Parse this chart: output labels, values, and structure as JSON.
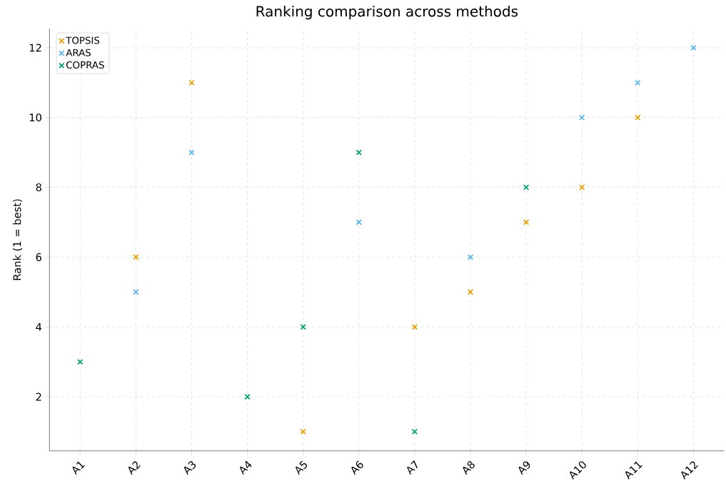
{
  "chart_data": {
    "type": "scatter",
    "title": "Ranking comparison across methods",
    "ylabel": "Rank (1 = best)",
    "categories": [
      "A1",
      "A2",
      "A3",
      "A4",
      "A5",
      "A6",
      "A7",
      "A8",
      "A9",
      "A10",
      "A11",
      "A12"
    ],
    "series": [
      {
        "name": "TOPSIS",
        "color": "#e69f00",
        "values": [
          null,
          6,
          11,
          null,
          1,
          null,
          4,
          5,
          7,
          8,
          10,
          null
        ]
      },
      {
        "name": "ARAS",
        "color": "#56b4e9",
        "values": [
          null,
          5,
          9,
          null,
          null,
          7,
          null,
          6,
          null,
          10,
          11,
          12
        ]
      },
      {
        "name": "COPRAS",
        "color": "#009e73",
        "values": [
          3,
          null,
          null,
          2,
          4,
          9,
          1,
          null,
          8,
          null,
          null,
          null
        ]
      }
    ],
    "ylim": [
      0.45,
      12.55
    ],
    "yticks": [
      2,
      4,
      6,
      8,
      10,
      12
    ],
    "grid": true,
    "legend": "top left",
    "marker": "cross"
  }
}
